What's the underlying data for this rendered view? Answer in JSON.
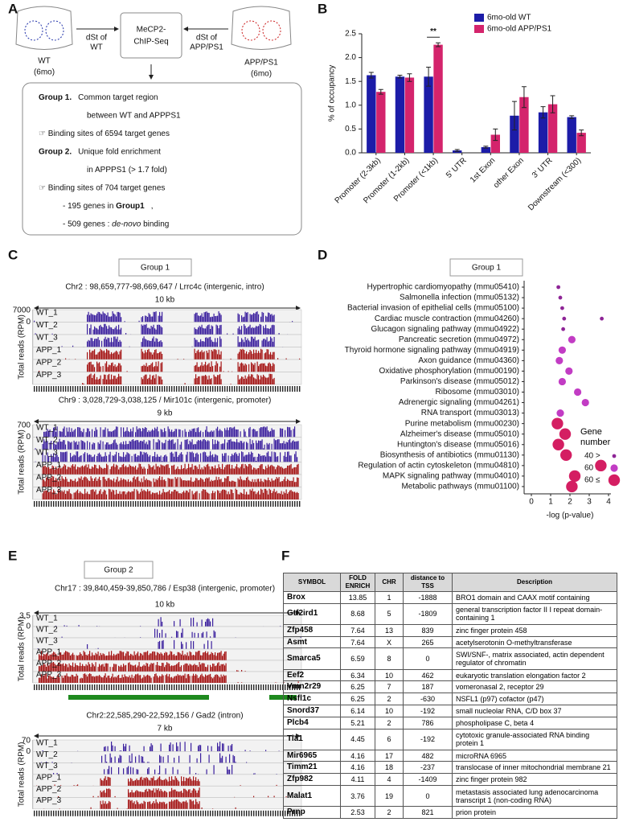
{
  "panel_labels": [
    "A",
    "B",
    "C",
    "D",
    "E",
    "F"
  ],
  "diagram": {
    "left_sample": [
      "WT",
      "(6mo)"
    ],
    "left_arrow": [
      "dSt of",
      "WT"
    ],
    "center": [
      "MeCP2-",
      "ChIP-Seq"
    ],
    "right_arrow": [
      "dSt of",
      "APP/PS1"
    ],
    "right_sample": [
      "APP/PS1",
      "(6mo)"
    ],
    "summary": [
      [
        {
          "text": "Group 1.",
          "bold": true
        },
        {
          "text": "Common target region"
        }
      ],
      [
        {
          "text": "between WT and APPPS1"
        }
      ],
      [
        {
          "text": "☞ Binding sites of 6594 target genes"
        }
      ],
      [
        {
          "text": "Group 2.",
          "bold": true
        },
        {
          "text": "Unique fold enrichment"
        }
      ],
      [
        {
          "text": "in APPPS1 (> 1.7 fold)"
        }
      ],
      [
        {
          "text": "☞ Binding sites of 704 target genes"
        }
      ],
      [
        {
          "text": "- 195 genes in "
        },
        {
          "text": "Group1",
          "bold": true
        },
        {
          "text": ","
        }
      ],
      [
        {
          "text": "- 509 genes : "
        },
        {
          "text": "de-novo",
          "italic": true
        },
        {
          "text": " binding"
        }
      ]
    ]
  },
  "chart_data": [
    {
      "type": "bar",
      "ylabel": "% of occupancy",
      "categories": [
        "Promoter (2-3kb)",
        "Promoter (1-2kb)",
        "Promoter (<1kb)",
        "5' UTR",
        "1st Exon",
        "other Exon",
        "3' UTR",
        "Downstream (<300)"
      ],
      "series": [
        {
          "name": "6mo-old WT",
          "color": "#1c1ca8",
          "values": [
            1.63,
            1.6,
            1.6,
            0.05,
            0.12,
            0.78,
            0.85,
            0.75
          ],
          "errors": [
            0.06,
            0.03,
            0.2,
            0.02,
            0.02,
            0.3,
            0.12,
            0.03
          ]
        },
        {
          "name": "6mo-old APP/PS1",
          "color": "#d4246c",
          "values": [
            1.28,
            1.58,
            2.27,
            0,
            0.38,
            1.17,
            1.02,
            0.42
          ],
          "errors": [
            0.05,
            0.08,
            0.04,
            0,
            0.12,
            0.22,
            0.18,
            0.06
          ]
        }
      ],
      "ylim": [
        0,
        2.5
      ],
      "yticks": [
        {
          "value": 0,
          "label": "0.0"
        },
        0.5,
        {
          "value": 1,
          "label": "1.0"
        },
        1.5,
        {
          "value": 2,
          "label": "2.0"
        },
        2.5
      ],
      "legend": "upper right",
      "annotations": [
        {
          "text": "**",
          "category": "Promoter (<1kb)"
        }
      ]
    },
    {
      "type": "dot",
      "title": "Group 1",
      "xlabel": "-log (p-value)",
      "legend_title": "Gene number",
      "categories": [
        "Hypertrophic cardiomyopathy (mmu05410)",
        "Salmonella infection (mmu05132)",
        "Bacterial invasion of epithelial cells (mmu05100)",
        "Cardiac muscle contraction (mmu04260)",
        "Glucagon signaling pathway (mmu04922)",
        "Pancreatic secretion (mmu04972)",
        "Thyroid hormone signaling pathway (mmu04919)",
        "Axon guidance (mmu04360)",
        "Oxidative phosphorylation (mmu00190)",
        "Parkinson's disease (mmu05012)",
        "Ribosome (mmu03010)",
        "Adrenergic signaling (mmu04261)",
        "RNA transport (mmu03013)",
        "Purine metabolism (mmu00230)",
        "Alzheimer's disease (mmu05010)",
        "Huntington's disease (mmu05016)",
        "Biosynthesis of antibiotics (mmu01130)",
        "Regulation of actin cytoskeleton (mmu04810)",
        "MAPK signaling pathway (mmu04010)",
        "Metabolic pathways (mmu01100)"
      ],
      "series": [
        {
          "name": "40 >",
          "color": "#8e2496",
          "values": [
            1.4,
            1.5,
            1.6,
            1.7,
            1.65,
            null,
            null,
            null,
            null,
            null,
            null,
            null,
            null,
            null,
            null,
            null,
            null,
            null,
            null,
            null
          ]
        },
        {
          "name": "60 >",
          "color": "#c23cc4",
          "values": [
            null,
            null,
            null,
            null,
            null,
            2.1,
            1.6,
            1.45,
            1.95,
            1.6,
            2.4,
            2.8,
            1.5,
            null,
            null,
            null,
            null,
            null,
            null,
            null
          ]
        },
        {
          "name": "60 ≤",
          "color": "#d41e62",
          "values": [
            null,
            null,
            null,
            null,
            null,
            null,
            null,
            null,
            null,
            null,
            null,
            null,
            null,
            1.35,
            1.75,
            1.4,
            1.8,
            3.6,
            2.25,
            2.1
          ]
        },
        {
          "color": "#8e2496",
          "values": [
            null,
            null,
            null,
            3.65,
            null,
            null,
            null,
            null,
            null,
            null,
            null,
            null,
            null,
            null,
            null,
            null,
            null,
            null,
            null,
            null
          ]
        }
      ],
      "xlim": [
        0,
        4
      ],
      "xticks": [
        0,
        1,
        2,
        3,
        4
      ],
      "legend": "lower right"
    }
  ],
  "tracks": [
    {
      "title": "Group 1",
      "views": [
        {
          "locus": "Chr2 : 98,659,777-98,669,647 / Lrrc4c (intergenic, intro)",
          "scale": "10 kb",
          "ymax": "7000",
          "ymin": "0",
          "ylabel": "Total reads (RPM)",
          "samples": [
            "WT_1",
            "WT_2",
            "WT_3",
            "APP_1",
            "APP_2",
            "APP_3"
          ]
        },
        {
          "locus": "Chr9 : 3,028,729-3,038,125 / Mir101c (intergenic, promoter)",
          "scale": "9 kb",
          "ymax": "700",
          "ymin": "0",
          "ylabel": "Total reads (RPM)",
          "samples": [
            "WT_1",
            "WT_2",
            "WT_3",
            "APP_1",
            "APP_2",
            "APP_3"
          ]
        }
      ]
    },
    {
      "title": "Group 2",
      "views": [
        {
          "locus": "Chr17 : 39,840,459-39,850,786 / Esp38 (intergenic, promoter)",
          "scale": "10 kb",
          "ymax": "3.5",
          "ymin": "0",
          "ylabel": "Total reads (RPM)",
          "samples": [
            "WT_1",
            "WT_2",
            "WT_3",
            "APP_1",
            "APP_2",
            "APP_3"
          ]
        },
        {
          "locus": "Chr2:22,585,290-22,592,156 / Gad2 (intron)",
          "scale": "7 kb",
          "ymax": "70",
          "ymin": "0",
          "ylabel": "Total reads (RPM)",
          "samples": [
            "WT_1",
            "WT_2",
            "WT_3",
            "APP_1",
            "APP_2",
            "APP_3"
          ]
        }
      ]
    }
  ],
  "table": {
    "header": [
      "SYMBOL",
      "FOLD ENRICH",
      "CHR",
      "distance to TSS",
      "Description"
    ],
    "rows": [
      [
        "Brox",
        "13.85",
        "1",
        "-1888",
        "BRO1 domain and CAAX motif containing"
      ],
      [
        "Gtf2ird1",
        "8.68",
        "5",
        "-1809",
        "general transcription factor II I repeat domain-containing 1"
      ],
      [
        "Zfp458",
        "7.64",
        "13",
        "839",
        "zinc finger protein 458"
      ],
      [
        "Asmt",
        "7.64",
        "X",
        "265",
        "acetylserotonin O-methyltransferase"
      ],
      [
        "Smarca5",
        "6.59",
        "8",
        "0",
        "SWI/SNF-, matrix associated, actin dependent regulator of chromatin"
      ],
      [
        "Eef2",
        "6.34",
        "10",
        "462",
        "eukaryotic translation elongation factor 2"
      ],
      [
        "Vmn2r29",
        "6.25",
        "7",
        "187",
        "vomeronasal 2, receptor 29"
      ],
      [
        "Nsfl1c",
        "6.25",
        "2",
        "-630",
        "NSFL1 (p97) cofactor (p47)"
      ],
      [
        "Snord37",
        "6.14",
        "10",
        "-192",
        "small nucleolar RNA, C/D box 37"
      ],
      [
        "Plcb4",
        "5.21",
        "2",
        "786",
        "phospholipase C, beta 4"
      ],
      [
        "Tia1",
        "4.45",
        "6",
        "-192",
        "cytotoxic granule-associated RNA binding protein 1"
      ],
      [
        "Mir6965",
        "4.16",
        "17",
        "482",
        "microRNA 6965"
      ],
      [
        "Timm21",
        "4.16",
        "18",
        "-237",
        "translocase of inner mitochondrial membrane 21"
      ],
      [
        "Zfp982",
        "4.11",
        "4",
        "-1409",
        "zinc finger protein 982"
      ],
      [
        "Malat1",
        "3.76",
        "19",
        "0",
        "metastasis associated lung adenocarcinoma transcript 1 (non-coding RNA)"
      ],
      [
        "Prnp",
        "2.53",
        "2",
        "821",
        "prion protein"
      ]
    ]
  }
}
